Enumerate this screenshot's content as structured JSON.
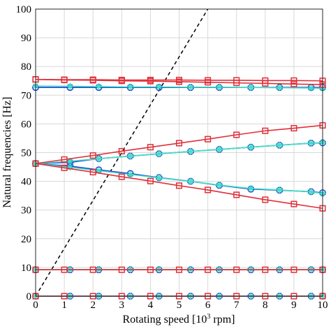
{
  "chart_data": {
    "type": "line",
    "title": "",
    "xlabel_main": "Rotating speed [10",
    "xlabel_sup": "3",
    "xlabel_tail": " rpm]",
    "ylabel": "Natural frequencies [Hz]",
    "xlim": [
      0,
      10
    ],
    "ylim": [
      0,
      100
    ],
    "xticks": [
      0,
      1,
      2,
      3,
      4,
      5,
      6,
      7,
      8,
      9,
      10
    ],
    "yticks": [
      0,
      10,
      20,
      30,
      40,
      50,
      60,
      70,
      80,
      90,
      100
    ],
    "grid": true,
    "reference_line": {
      "style": "dashed",
      "color": "#000000",
      "x": [
        0,
        10
      ],
      "y": [
        0,
        166.7
      ]
    },
    "marker_x": [
      0,
      1,
      2,
      3,
      4,
      5,
      6,
      7,
      8,
      9,
      10
    ],
    "mode_groups": [
      {
        "marker": "o",
        "color": "#1f3fd6",
        "x": [
          0,
          1.2,
          2.2,
          3.3,
          4.3,
          5.4,
          6.4,
          7.5,
          8.5,
          9.6,
          10
        ],
        "modes": [
          [
            0,
            0,
            0,
            0,
            0,
            0,
            0,
            0,
            0,
            0,
            0
          ],
          [
            9.2,
            9.2,
            9.2,
            9.2,
            9.2,
            9.2,
            9.2,
            9.2,
            9.2,
            9.2,
            9.2
          ],
          [
            46.2,
            45.3,
            44.0,
            42.7,
            41.3,
            40.0,
            38.6,
            37.3,
            36.9,
            36.4,
            36.0
          ],
          [
            46.2,
            46.6,
            47.9,
            48.8,
            49.6,
            50.4,
            51.1,
            51.9,
            52.6,
            53.3,
            53.4
          ],
          [
            72.7,
            72.7,
            72.7,
            72.7,
            72.7,
            72.7,
            72.7,
            72.7,
            72.7,
            72.7,
            72.7
          ]
        ]
      },
      {
        "marker": "*",
        "color": "#40e0c0",
        "x": [
          0,
          1.2,
          2.2,
          3.3,
          4.3,
          5.4,
          6.4,
          7.5,
          8.5,
          9.6,
          10
        ],
        "modes": [
          [
            0,
            0,
            0,
            0,
            0,
            0,
            0,
            0,
            0,
            0,
            0
          ],
          [
            9.3,
            9.3,
            9.3,
            9.3,
            9.3,
            9.3,
            9.3,
            9.3,
            9.3,
            9.3,
            9.3
          ],
          [
            46.2,
            44.9,
            43.7,
            42.4,
            41.2,
            40.0,
            38.7,
            37.5,
            37.0,
            36.3,
            35.8
          ],
          [
            46.2,
            47.0,
            47.9,
            48.8,
            49.6,
            50.4,
            51.1,
            51.9,
            52.6,
            53.3,
            53.5
          ],
          [
            73.2,
            73.1,
            73.0,
            72.9,
            72.9,
            72.8,
            72.8,
            72.7,
            72.6,
            72.5,
            72.4
          ]
        ]
      },
      {
        "marker": "s",
        "color": "#e0303a",
        "x": [
          0,
          1,
          2,
          3,
          4,
          5,
          6,
          7,
          8,
          9,
          10
        ],
        "modes": [
          [
            0,
            0,
            0,
            0,
            0,
            0,
            0,
            0,
            0,
            0,
            0
          ],
          [
            9.2,
            9.2,
            9.2,
            9.2,
            9.2,
            9.2,
            9.2,
            9.2,
            9.2,
            9.2,
            9.2
          ],
          [
            46.2,
            44.7,
            43.2,
            41.6,
            40.1,
            38.5,
            37.0,
            35.3,
            33.6,
            32.1,
            30.6
          ],
          [
            46.2,
            47.6,
            49.0,
            50.5,
            51.9,
            53.3,
            54.7,
            56.2,
            57.6,
            58.5,
            59.5
          ],
          [
            75.5,
            75.4,
            75.4,
            75.3,
            75.3,
            75.3,
            75.2,
            75.2,
            75.1,
            75.1,
            75.0
          ],
          [
            75.5,
            75.3,
            75.2,
            75.0,
            74.9,
            74.7,
            74.5,
            74.3,
            74.1,
            73.9,
            73.7
          ]
        ]
      }
    ]
  }
}
